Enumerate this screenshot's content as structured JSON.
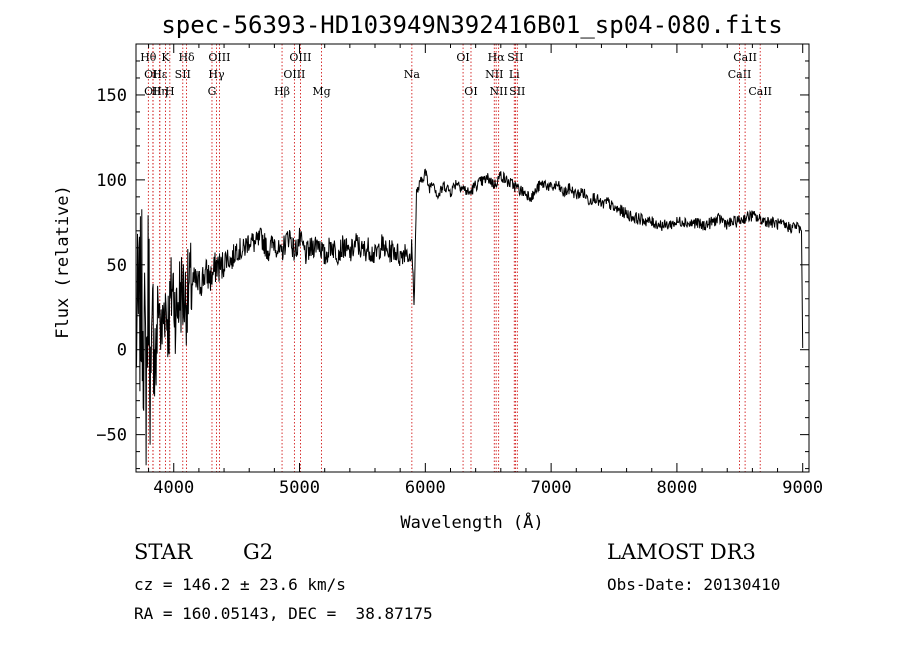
{
  "chart_data": {
    "type": "line",
    "title": "spec-56393-HD103949N392416B01_sp04-080.fits",
    "xlabel": "Wavelength (Å)",
    "ylabel": "Flux (relative)",
    "xlim": [
      3700,
      9050
    ],
    "ylim": [
      -72,
      180
    ],
    "xticks": [
      4000,
      5000,
      6000,
      7000,
      8000,
      9000
    ],
    "xtick_labels": [
      "4000",
      "5000",
      "6000",
      "7000",
      "8000",
      "9000"
    ],
    "yticks": [
      -50,
      0,
      50,
      100,
      150
    ],
    "ytick_labels": [
      "−50",
      "0",
      "50",
      "100",
      "150"
    ],
    "grid": false,
    "series": [
      {
        "name": "flux",
        "x": [
          3700,
          3750,
          3780,
          3800,
          3820,
          3840,
          3860,
          3880,
          3900,
          3930,
          3960,
          3990,
          4020,
          4050,
          4100,
          4150,
          4200,
          4250,
          4300,
          4340,
          4380,
          4420,
          4460,
          4500,
          4550,
          4600,
          4650,
          4700,
          4750,
          4800,
          4850,
          4880,
          4920,
          4960,
          5000,
          5050,
          5100,
          5150,
          5200,
          5250,
          5300,
          5350,
          5400,
          5450,
          5500,
          5550,
          5600,
          5650,
          5700,
          5750,
          5800,
          5850,
          5880,
          5895,
          5910,
          5930,
          5960,
          6000,
          6030,
          6060,
          6100,
          6150,
          6200,
          6250,
          6300,
          6350,
          6400,
          6450,
          6500,
          6550,
          6600,
          6650,
          6700,
          6750,
          6800,
          6850,
          6900,
          6950,
          7000,
          7050,
          7100,
          7150,
          7200,
          7250,
          7300,
          7350,
          7400,
          7450,
          7500,
          7550,
          7600,
          7650,
          7700,
          7750,
          7800,
          7850,
          7900,
          7950,
          8000,
          8050,
          8100,
          8150,
          8200,
          8250,
          8300,
          8350,
          8400,
          8450,
          8500,
          8550,
          8600,
          8650,
          8700,
          8750,
          8800,
          8850,
          8900,
          8950,
          8990,
          9000
        ],
        "y": [
          10,
          30,
          -20,
          50,
          -40,
          25,
          -10,
          35,
          5,
          30,
          15,
          40,
          20,
          35,
          30,
          40,
          38,
          45,
          42,
          50,
          48,
          55,
          52,
          60,
          58,
          65,
          62,
          66,
          58,
          64,
          55,
          62,
          68,
          57,
          65,
          56,
          60,
          64,
          54,
          62,
          57,
          61,
          56,
          63,
          58,
          60,
          55,
          62,
          57,
          59,
          55,
          60,
          50,
          62,
          25,
          92,
          98,
          105,
          95,
          100,
          90,
          97,
          93,
          99,
          95,
          92,
          97,
          99,
          101,
          97,
          103,
          99,
          97,
          94,
          92,
          90,
          96,
          98,
          95,
          97,
          92,
          95,
          91,
          93,
          88,
          90,
          85,
          87,
          83,
          82,
          80,
          78,
          77,
          76,
          75,
          74,
          73,
          74,
          75,
          76,
          74,
          75,
          73,
          74,
          76,
          77,
          74,
          75,
          76,
          78,
          79,
          77,
          76,
          75,
          74,
          73,
          72,
          73,
          70,
          1
        ]
      }
    ],
    "lines": [
      {
        "w": 3798,
        "label": "Hθ",
        "row": 1
      },
      {
        "w": 3835,
        "label": "OII",
        "row": 2
      },
      {
        "w": 3835,
        "label": "OII",
        "row": 3
      },
      {
        "w": 3889,
        "label": "Hε",
        "row": 2
      },
      {
        "w": 3889,
        "label": "Hη",
        "row": 3
      },
      {
        "w": 3934,
        "label": "K",
        "row": 1
      },
      {
        "w": 3969,
        "label": "H",
        "row": 3
      },
      {
        "w": 4072,
        "label": "SII",
        "row": 2
      },
      {
        "w": 4102,
        "label": "Hδ",
        "row": 1
      },
      {
        "w": 4304,
        "label": "G",
        "row": 3
      },
      {
        "w": 4340,
        "label": "Hγ",
        "row": 2
      },
      {
        "w": 4363,
        "label": "OIII",
        "row": 1
      },
      {
        "w": 4861,
        "label": "Hβ",
        "row": 3
      },
      {
        "w": 4959,
        "label": "OIII",
        "row": 2
      },
      {
        "w": 5007,
        "label": "OIII",
        "row": 1
      },
      {
        "w": 5175,
        "label": "Mg",
        "row": 3
      },
      {
        "w": 5893,
        "label": "Na",
        "row": 2
      },
      {
        "w": 6300,
        "label": "OI",
        "row": 1
      },
      {
        "w": 6363,
        "label": "OI",
        "row": 3
      },
      {
        "w": 6548,
        "label": "NII",
        "row": 2
      },
      {
        "w": 6563,
        "label": "Hα",
        "row": 1
      },
      {
        "w": 6583,
        "label": "NII",
        "row": 3
      },
      {
        "w": 6707,
        "label": "Li",
        "row": 2
      },
      {
        "w": 6716,
        "label": "SII",
        "row": 1
      },
      {
        "w": 6731,
        "label": "SII",
        "row": 3
      },
      {
        "w": 8498,
        "label": "CaII",
        "row": 2
      },
      {
        "w": 8542,
        "label": "CaII",
        "row": 1
      },
      {
        "w": 8662,
        "label": "CaII",
        "row": 3
      }
    ]
  },
  "info": {
    "object_class": "STAR",
    "subclass": "G2",
    "survey": "LAMOST DR3",
    "redshift": "cz = 146.2 ± 23.6 km/s",
    "obs_date": "Obs-Date: 20130410",
    "coords": "RA = 160.05143, DEC =  38.87175"
  }
}
